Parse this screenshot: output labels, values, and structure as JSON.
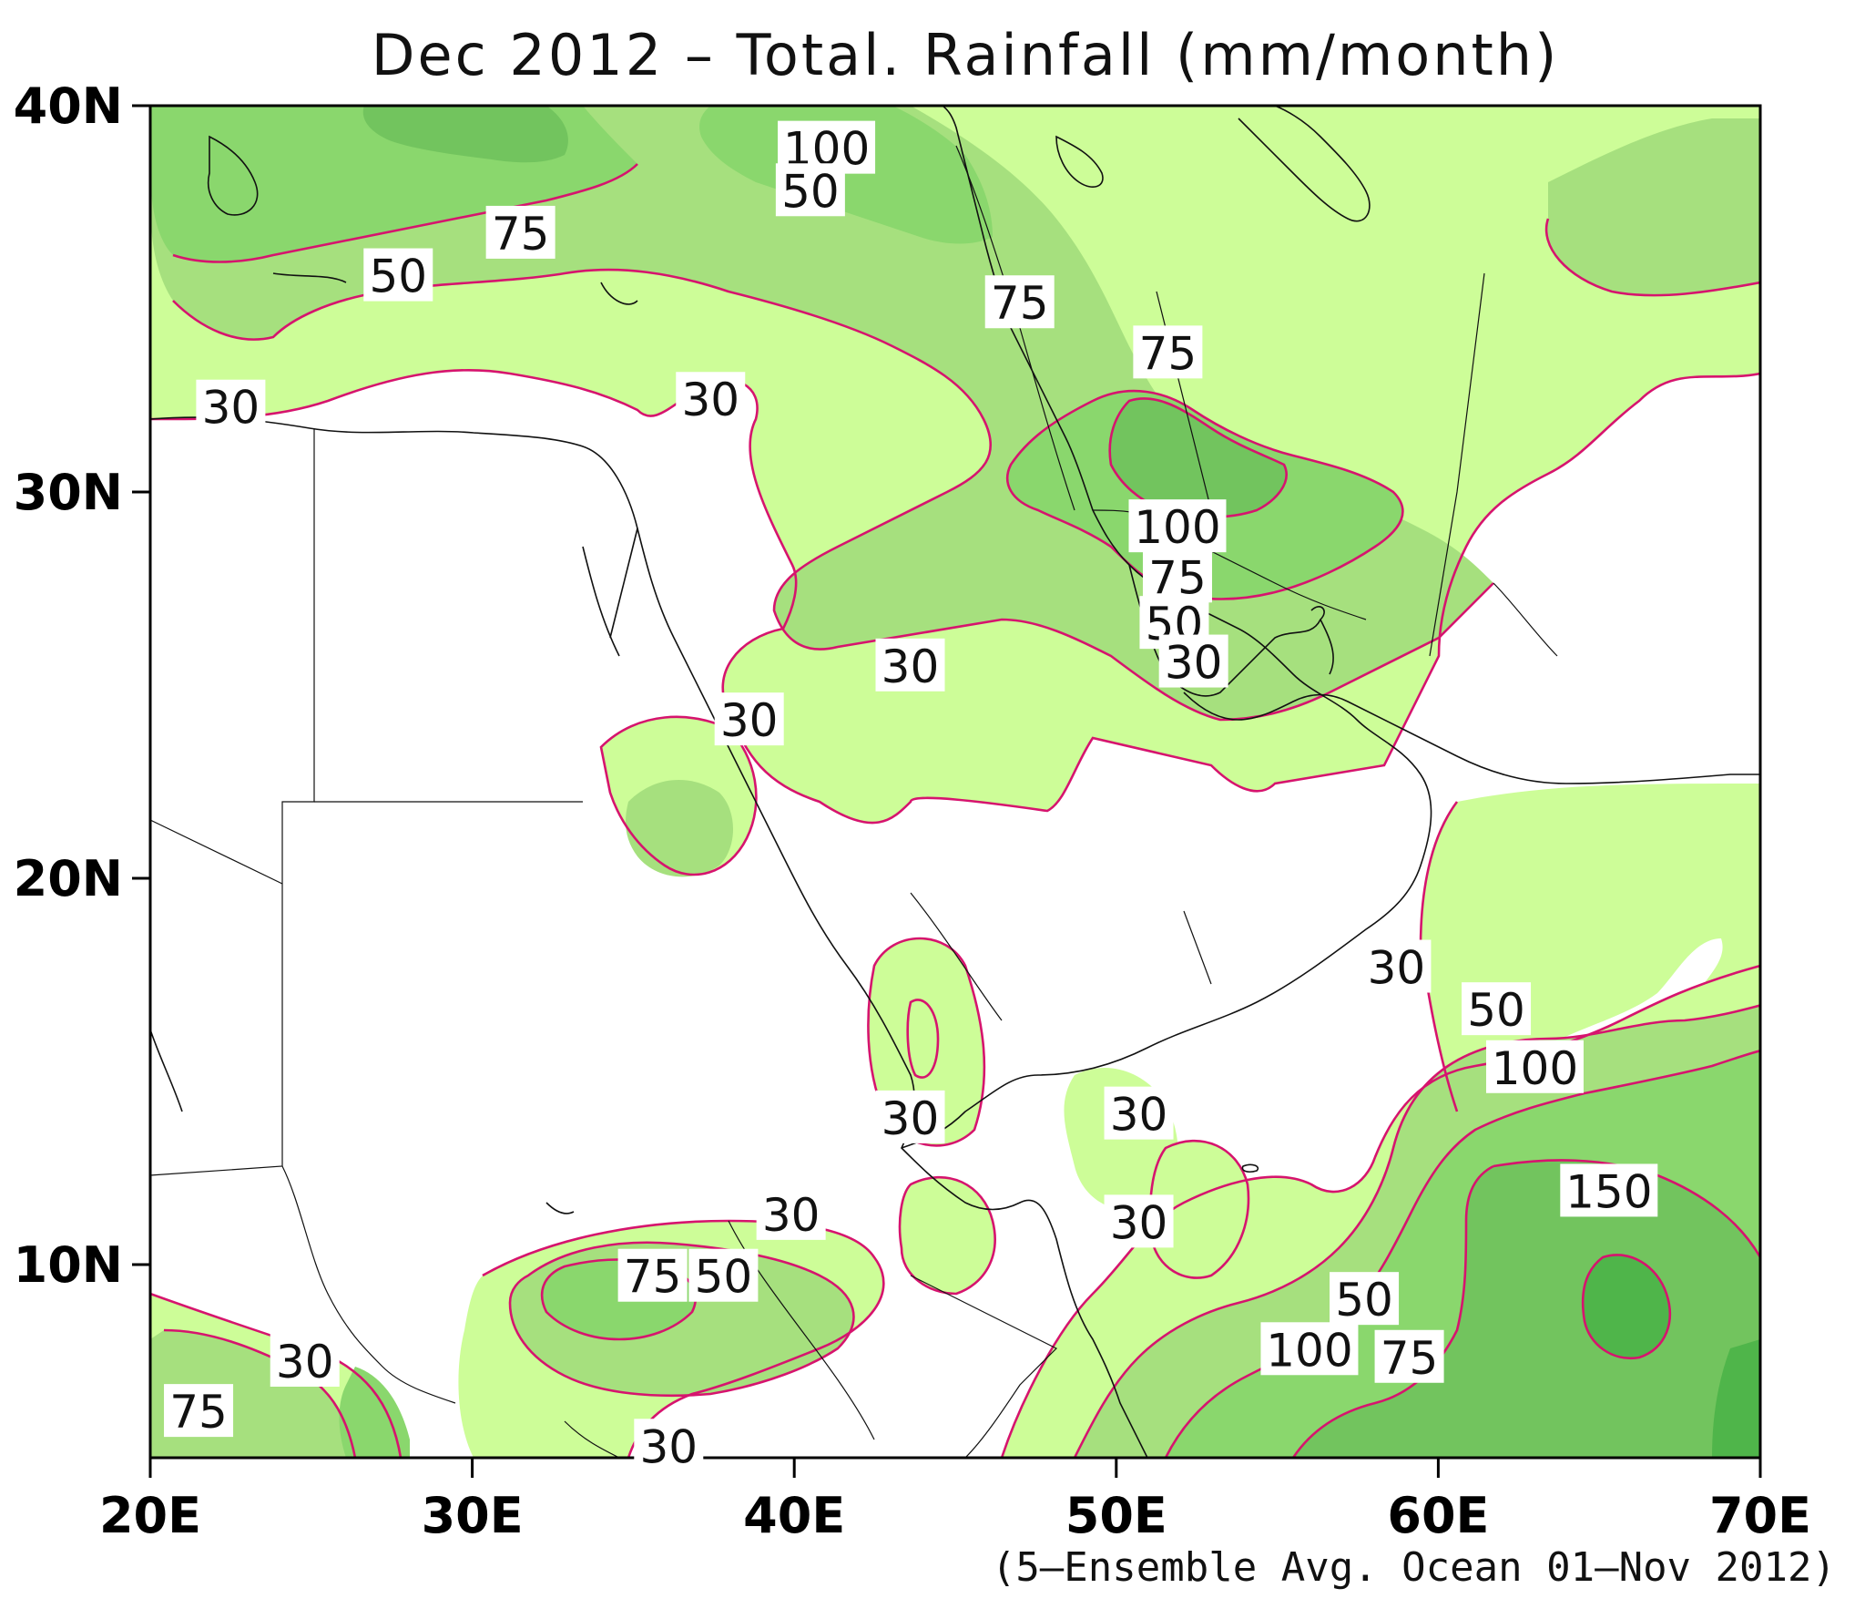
{
  "title": "Dec 2012 – Total. Rainfall (mm/month)",
  "credit": "(5–Ensemble Avg. Ocean 01–Nov 2012)",
  "map": {
    "lon_range": [
      20,
      70
    ],
    "lat_range": [
      5,
      40
    ],
    "x_ticks": [
      "20E",
      "30E",
      "40E",
      "50E",
      "60E",
      "70E"
    ],
    "y_ticks": [
      "10N",
      "20N",
      "30N",
      "40N"
    ],
    "contour_levels": [
      30,
      50,
      75,
      100,
      150
    ],
    "fill_colors": {
      "30": "#cdfd98",
      "50": "#a6e07e",
      "75": "#8ad76d",
      "100": "#72c45e",
      "150": "#4fb54a"
    },
    "contour_line_color": "#d6146e"
  },
  "contour_labels": [
    {
      "text": "100",
      "lon": 41.0,
      "lat": 38.9
    },
    {
      "text": "50",
      "lon": 40.5,
      "lat": 37.8
    },
    {
      "text": "75",
      "lon": 31.5,
      "lat": 36.7
    },
    {
      "text": "50",
      "lon": 27.7,
      "lat": 35.6
    },
    {
      "text": "75",
      "lon": 47.0,
      "lat": 34.9
    },
    {
      "text": "75",
      "lon": 51.6,
      "lat": 33.6
    },
    {
      "text": "30",
      "lon": 22.5,
      "lat": 32.2
    },
    {
      "text": "30",
      "lon": 37.4,
      "lat": 32.4
    },
    {
      "text": "100",
      "lon": 51.9,
      "lat": 29.1
    },
    {
      "text": "75",
      "lon": 51.9,
      "lat": 27.8
    },
    {
      "text": "50",
      "lon": 51.8,
      "lat": 26.6
    },
    {
      "text": "30",
      "lon": 52.4,
      "lat": 25.6
    },
    {
      "text": "30",
      "lon": 43.6,
      "lat": 25.5
    },
    {
      "text": "30",
      "lon": 38.6,
      "lat": 24.1
    },
    {
      "text": "30",
      "lon": 58.7,
      "lat": 17.7
    },
    {
      "text": "50",
      "lon": 61.8,
      "lat": 16.6
    },
    {
      "text": "100",
      "lon": 63.0,
      "lat": 15.1
    },
    {
      "text": "30",
      "lon": 43.6,
      "lat": 13.8
    },
    {
      "text": "30",
      "lon": 50.7,
      "lat": 13.9
    },
    {
      "text": "150",
      "lon": 65.3,
      "lat": 11.9
    },
    {
      "text": "30",
      "lon": 39.9,
      "lat": 11.3
    },
    {
      "text": "30",
      "lon": 50.7,
      "lat": 11.1
    },
    {
      "text": "75",
      "lon": 35.6,
      "lat": 9.7
    },
    {
      "text": "50",
      "lon": 37.8,
      "lat": 9.7
    },
    {
      "text": "50",
      "lon": 57.7,
      "lat": 9.1
    },
    {
      "text": "100",
      "lon": 56.0,
      "lat": 7.8
    },
    {
      "text": "75",
      "lon": 59.1,
      "lat": 7.6
    },
    {
      "text": "30",
      "lon": 24.8,
      "lat": 7.5
    },
    {
      "text": "75",
      "lon": 21.5,
      "lat": 6.2
    },
    {
      "text": "30",
      "lon": 36.1,
      "lat": 5.3
    }
  ]
}
